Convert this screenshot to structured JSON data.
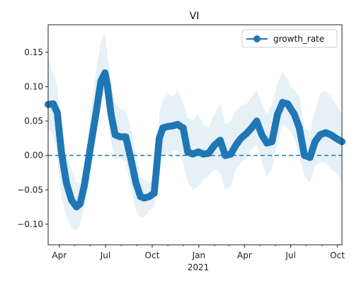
{
  "chart_data": {
    "type": "line",
    "title": "VI",
    "xlabel": "",
    "ylabel": "",
    "x_tick_labels": [
      "Apr",
      "Jul",
      "Oct",
      "Jan",
      "Apr",
      "Jul",
      "Oct"
    ],
    "x_tick_dates": [
      "2020-04-01",
      "2020-07-01",
      "2020-10-01",
      "2021-01-01",
      "2021-04-01",
      "2021-07-01",
      "2021-10-01"
    ],
    "x_year_label": "2021",
    "xlim": [
      "2020-03-10",
      "2021-10-10"
    ],
    "ylim": [
      -0.13,
      0.19
    ],
    "y_ticks": [
      -0.1,
      -0.05,
      0.0,
      0.05,
      0.1,
      0.15
    ],
    "y_tick_labels": [
      "−0.10",
      "−0.05",
      "0.00",
      "0.05",
      "0.10",
      "0.15"
    ],
    "grid": false,
    "legend": {
      "position": "top-right",
      "entries": [
        "growth_rate"
      ]
    },
    "reference_line": {
      "y": 0,
      "style": "dashed"
    },
    "colors": {
      "line": "#1f77b4",
      "band": "#1f77b4"
    },
    "series": [
      {
        "name": "growth_rate",
        "x": [
          "2020-03-10",
          "2020-03-20",
          "2020-03-28",
          "2020-04-05",
          "2020-04-15",
          "2020-04-25",
          "2020-05-05",
          "2020-05-12",
          "2020-05-20",
          "2020-06-01",
          "2020-06-12",
          "2020-06-22",
          "2020-06-30",
          "2020-07-05",
          "2020-07-12",
          "2020-07-20",
          "2020-07-30",
          "2020-08-10",
          "2020-08-20",
          "2020-08-30",
          "2020-09-08",
          "2020-09-15",
          "2020-09-25",
          "2020-10-05",
          "2020-10-15",
          "2020-10-22",
          "2020-11-01",
          "2020-11-10",
          "2020-11-20",
          "2020-12-01",
          "2020-12-10",
          "2020-12-20",
          "2020-12-31",
          "2021-01-10",
          "2021-01-20",
          "2021-02-01",
          "2021-02-12",
          "2021-02-22",
          "2021-03-05",
          "2021-03-15",
          "2021-03-25",
          "2021-04-05",
          "2021-04-15",
          "2021-04-25",
          "2021-05-05",
          "2021-05-15",
          "2021-05-25",
          "2021-06-05",
          "2021-06-15",
          "2021-06-25",
          "2021-07-01",
          "2021-07-08",
          "2021-07-18",
          "2021-07-28",
          "2021-08-08",
          "2021-08-18",
          "2021-08-28",
          "2021-09-08",
          "2021-09-18",
          "2021-09-28",
          "2021-10-10"
        ],
        "values": [
          0.074,
          0.075,
          0.062,
          0.005,
          -0.04,
          -0.065,
          -0.075,
          -0.07,
          -0.045,
          0.01,
          0.06,
          0.108,
          0.12,
          0.1,
          0.06,
          0.03,
          0.027,
          0.027,
          -0.005,
          -0.04,
          -0.06,
          -0.062,
          -0.06,
          -0.055,
          0.025,
          0.04,
          0.042,
          0.043,
          0.045,
          0.04,
          0.005,
          0.002,
          0.005,
          0.002,
          0.003,
          0.015,
          0.022,
          0.0,
          0.002,
          0.015,
          0.025,
          0.032,
          0.04,
          0.05,
          0.03,
          0.018,
          0.02,
          0.06,
          0.077,
          0.075,
          0.068,
          0.06,
          0.04,
          0.0,
          -0.003,
          0.02,
          0.03,
          0.033,
          0.03,
          0.025,
          0.02
        ],
        "lower": [
          0.04,
          0.03,
          0.0,
          -0.06,
          -0.09,
          -0.105,
          -0.11,
          -0.1,
          -0.075,
          -0.02,
          0.03,
          0.08,
          0.09,
          0.06,
          0.02,
          -0.005,
          -0.005,
          -0.01,
          -0.045,
          -0.08,
          -0.09,
          -0.09,
          -0.08,
          -0.075,
          -0.01,
          0.0,
          0.002,
          0.005,
          0.008,
          -0.01,
          -0.04,
          -0.05,
          -0.045,
          -0.035,
          -0.03,
          -0.02,
          -0.025,
          -0.05,
          -0.045,
          -0.02,
          -0.01,
          -0.005,
          0.01,
          0.015,
          -0.01,
          -0.03,
          -0.02,
          0.02,
          0.045,
          0.04,
          0.035,
          0.025,
          0.0,
          -0.03,
          -0.04,
          -0.015,
          -0.01,
          -0.01,
          -0.02,
          -0.025,
          -0.04
        ],
        "upper": [
          0.14,
          0.12,
          0.1,
          0.05,
          0.0,
          -0.02,
          -0.04,
          -0.04,
          -0.02,
          0.06,
          0.12,
          0.165,
          0.178,
          0.145,
          0.11,
          0.075,
          0.068,
          0.065,
          0.04,
          0.0,
          -0.03,
          -0.035,
          -0.04,
          -0.035,
          0.06,
          0.08,
          0.09,
          0.085,
          0.095,
          0.075,
          0.055,
          0.05,
          0.06,
          0.045,
          0.04,
          0.06,
          0.075,
          0.045,
          0.05,
          0.065,
          0.072,
          0.075,
          0.085,
          0.095,
          0.075,
          0.06,
          0.075,
          0.105,
          0.122,
          0.11,
          0.1,
          0.095,
          0.085,
          0.04,
          0.035,
          0.065,
          0.09,
          0.095,
          0.085,
          0.075,
          0.06
        ]
      }
    ]
  }
}
